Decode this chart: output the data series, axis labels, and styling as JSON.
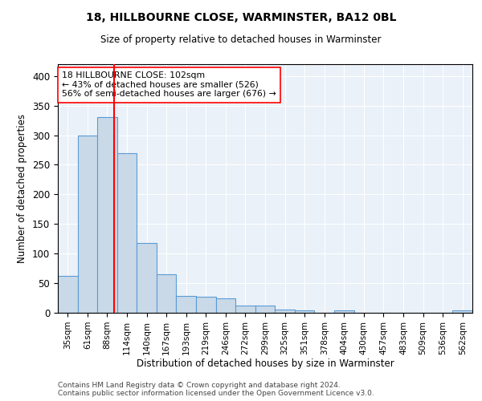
{
  "title1": "18, HILLBOURNE CLOSE, WARMINSTER, BA12 0BL",
  "title2": "Size of property relative to detached houses in Warminster",
  "xlabel": "Distribution of detached houses by size in Warminster",
  "ylabel": "Number of detached properties",
  "bar_labels": [
    "35sqm",
    "61sqm",
    "88sqm",
    "114sqm",
    "140sqm",
    "167sqm",
    "193sqm",
    "219sqm",
    "246sqm",
    "272sqm",
    "299sqm",
    "325sqm",
    "351sqm",
    "378sqm",
    "404sqm",
    "430sqm",
    "457sqm",
    "483sqm",
    "509sqm",
    "536sqm",
    "562sqm"
  ],
  "bar_values": [
    62,
    300,
    330,
    270,
    118,
    65,
    28,
    27,
    25,
    12,
    12,
    5,
    4,
    0,
    4,
    0,
    0,
    0,
    0,
    0,
    4
  ],
  "bar_color": "#c9d9e8",
  "bar_edge_color": "#5b9bd5",
  "annotation_line1": "18 HILLBOURNE CLOSE: 102sqm",
  "annotation_line2": "← 43% of detached houses are smaller (526)",
  "annotation_line3": "56% of semi-detached houses are larger (676) →",
  "footer1": "Contains HM Land Registry data © Crown copyright and database right 2024.",
  "footer2": "Contains public sector information licensed under the Open Government Licence v3.0.",
  "bg_color": "#eaf1f8",
  "ylim": [
    0,
    420
  ],
  "yticks": [
    0,
    50,
    100,
    150,
    200,
    250,
    300,
    350,
    400
  ],
  "red_line_x": 2.35
}
